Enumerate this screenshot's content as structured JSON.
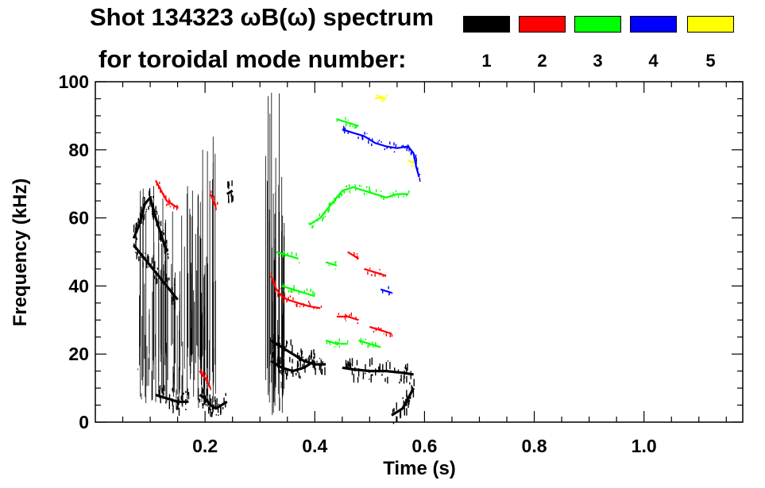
{
  "header": {
    "title_line1": "Shot 134323 ωB(ω) spectrum",
    "title_line2": "for toroidal mode number:"
  },
  "legend": [
    {
      "label": "1",
      "color": "#000000"
    },
    {
      "label": "2",
      "color": "#ff0000"
    },
    {
      "label": "3",
      "color": "#00ff00"
    },
    {
      "label": "4",
      "color": "#0000ff"
    },
    {
      "label": "5",
      "color": "#ffff00"
    }
  ],
  "chart_data": {
    "type": "scatter",
    "title": "Shot 134323 ωB(ω) spectrum",
    "xlabel": "Time (s)",
    "ylabel": "Frequency (kHz)",
    "xlim": [
      0.0,
      1.18
    ],
    "ylim": [
      0,
      100
    ],
    "xticks": [
      0.2,
      0.4,
      0.6,
      0.8,
      1.0
    ],
    "xtick_labels": [
      "0.2",
      "0.4",
      "0.6",
      "0.8",
      "1.0"
    ],
    "yticks": [
      0,
      20,
      40,
      60,
      80,
      100
    ],
    "ytick_labels": [
      "0",
      "20",
      "40",
      "60",
      "80",
      "100"
    ],
    "grid": false,
    "legend_position": "top-right",
    "series": [
      {
        "name": "1",
        "color": "#000000",
        "segments": [
          [
            [
              0.07,
              54
            ],
            [
              0.08,
              58
            ],
            [
              0.09,
              64
            ],
            [
              0.1,
              66
            ],
            [
              0.11,
              60
            ],
            [
              0.12,
              55
            ],
            [
              0.13,
              50
            ]
          ],
          [
            [
              0.07,
              52
            ],
            [
              0.09,
              48
            ],
            [
              0.11,
              44
            ],
            [
              0.13,
              40
            ],
            [
              0.15,
              36
            ]
          ],
          [
            [
              0.11,
              8
            ],
            [
              0.13,
              7
            ],
            [
              0.15,
              6
            ],
            [
              0.17,
              6
            ]
          ],
          [
            [
              0.19,
              8
            ],
            [
              0.2,
              7
            ],
            [
              0.21,
              5
            ],
            [
              0.22,
              4
            ],
            [
              0.24,
              6
            ]
          ],
          [
            [
              0.24,
              67
            ],
            [
              0.25,
              68
            ]
          ],
          [
            [
              0.32,
              24
            ],
            [
              0.34,
              22
            ],
            [
              0.36,
              20
            ],
            [
              0.38,
              18
            ],
            [
              0.4,
              17
            ],
            [
              0.42,
              17
            ]
          ],
          [
            [
              0.32,
              18
            ],
            [
              0.34,
              16
            ],
            [
              0.36,
              15
            ],
            [
              0.38,
              16
            ],
            [
              0.4,
              18
            ]
          ],
          [
            [
              0.45,
              16
            ],
            [
              0.47,
              15.5
            ],
            [
              0.5,
              15
            ],
            [
              0.53,
              15
            ],
            [
              0.56,
              14.5
            ],
            [
              0.58,
              14
            ]
          ],
          [
            [
              0.54,
              2
            ],
            [
              0.56,
              4
            ],
            [
              0.57,
              7
            ],
            [
              0.58,
              10
            ]
          ]
        ]
      },
      {
        "name": "2",
        "color": "#ff0000",
        "segments": [
          [
            [
              0.11,
              71
            ],
            [
              0.12,
              68
            ],
            [
              0.13,
              65
            ],
            [
              0.14,
              64
            ],
            [
              0.15,
              63
            ]
          ],
          [
            [
              0.21,
              67
            ],
            [
              0.215,
              65
            ],
            [
              0.22,
              63
            ]
          ],
          [
            [
              0.19,
              15
            ],
            [
              0.2,
              13
            ],
            [
              0.21,
              10
            ]
          ],
          [
            [
              0.32,
              43
            ],
            [
              0.33,
              39
            ],
            [
              0.34,
              37
            ],
            [
              0.35,
              36
            ],
            [
              0.37,
              35
            ],
            [
              0.39,
              34
            ],
            [
              0.41,
              33.5
            ]
          ],
          [
            [
              0.46,
              50
            ],
            [
              0.48,
              48
            ]
          ],
          [
            [
              0.44,
              31
            ],
            [
              0.46,
              31
            ],
            [
              0.48,
              30
            ]
          ],
          [
            [
              0.5,
              28
            ],
            [
              0.52,
              27
            ],
            [
              0.54,
              26
            ]
          ],
          [
            [
              0.49,
              45
            ],
            [
              0.51,
              44
            ],
            [
              0.53,
              43
            ]
          ]
        ]
      },
      {
        "name": "3",
        "color": "#00ff00",
        "segments": [
          [
            [
              0.39,
              58
            ],
            [
              0.41,
              60
            ],
            [
              0.42,
              62
            ],
            [
              0.43,
              64
            ],
            [
              0.44,
              66
            ],
            [
              0.45,
              68
            ],
            [
              0.47,
              69
            ],
            [
              0.49,
              68
            ],
            [
              0.51,
              67
            ],
            [
              0.53,
              66
            ],
            [
              0.55,
              67
            ],
            [
              0.57,
              67
            ]
          ],
          [
            [
              0.44,
              89
            ],
            [
              0.46,
              88
            ],
            [
              0.48,
              87
            ]
          ],
          [
            [
              0.33,
              50
            ],
            [
              0.35,
              49
            ],
            [
              0.37,
              48
            ]
          ],
          [
            [
              0.34,
              40
            ],
            [
              0.36,
              39
            ],
            [
              0.38,
              38
            ],
            [
              0.4,
              37
            ]
          ],
          [
            [
              0.42,
              24
            ],
            [
              0.44,
              23
            ],
            [
              0.46,
              23
            ]
          ],
          [
            [
              0.48,
              24
            ],
            [
              0.5,
              23
            ],
            [
              0.52,
              22
            ]
          ],
          [
            [
              0.42,
              47
            ],
            [
              0.44,
              46
            ]
          ]
        ]
      },
      {
        "name": "4",
        "color": "#0000ff",
        "segments": [
          [
            [
              0.45,
              86
            ],
            [
              0.47,
              85
            ],
            [
              0.49,
              84
            ],
            [
              0.51,
              82
            ],
            [
              0.53,
              81
            ],
            [
              0.55,
              80.5
            ],
            [
              0.57,
              81
            ],
            [
              0.58,
              79
            ],
            [
              0.585,
              75
            ],
            [
              0.59,
              72
            ]
          ],
          [
            [
              0.52,
              39
            ],
            [
              0.54,
              38
            ]
          ]
        ]
      },
      {
        "name": "5",
        "color": "#ffff00",
        "segments": [
          [
            [
              0.51,
              95
            ],
            [
              0.52,
              95.5
            ],
            [
              0.53,
              95
            ]
          ],
          [
            [
              0.57,
              77
            ],
            [
              0.58,
              76
            ]
          ]
        ]
      }
    ]
  }
}
